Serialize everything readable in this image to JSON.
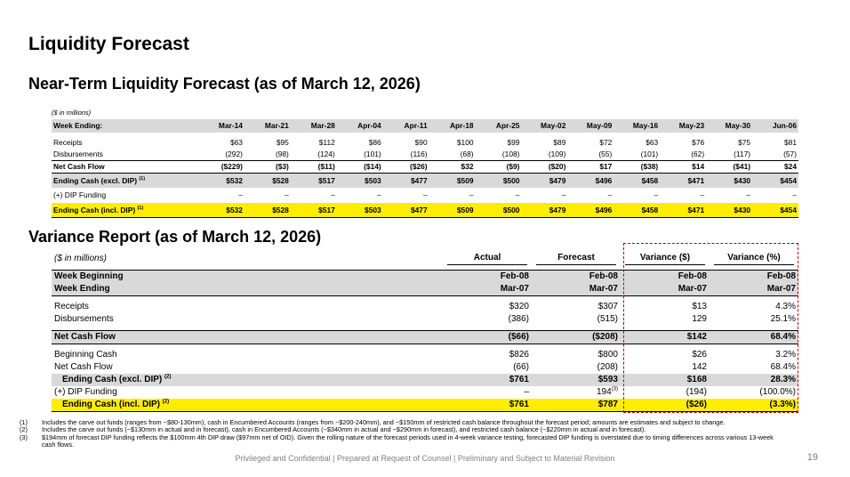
{
  "title": "Liquidity Forecast",
  "forecast": {
    "title": "Near-Term Liquidity Forecast (as of March 12, 2026)",
    "units": "($ in millions)",
    "week_label": "Week Ending:",
    "weeks": [
      "Mar-14",
      "Mar-21",
      "Mar-28",
      "Apr-04",
      "Apr-11",
      "Apr-18",
      "Apr-25",
      "May-02",
      "May-09",
      "May-16",
      "May-23",
      "May-30",
      "Jun-06"
    ],
    "rows": {
      "receipts": {
        "label": "Receipts",
        "values": [
          "$63",
          "$95",
          "$112",
          "$86",
          "$90",
          "$100",
          "$99",
          "$89",
          "$72",
          "$63",
          "$76",
          "$75",
          "$81"
        ]
      },
      "disbursements": {
        "label": "Disbursements",
        "values": [
          "(292)",
          "(98)",
          "(124)",
          "(101)",
          "(116)",
          "(68)",
          "(108)",
          "(109)",
          "(55)",
          "(101)",
          "(62)",
          "(117)",
          "(57)"
        ]
      },
      "net_cash_flow": {
        "label": "Net Cash Flow",
        "values": [
          "($229)",
          "($3)",
          "($11)",
          "($14)",
          "($26)",
          "$32",
          "($9)",
          "($20)",
          "$17",
          "($38)",
          "$14",
          "($41)",
          "$24"
        ]
      },
      "ending_cash_excl": {
        "label": "Ending Cash (excl. DIP)",
        "note": "(1)",
        "values": [
          "$532",
          "$528",
          "$517",
          "$503",
          "$477",
          "$509",
          "$500",
          "$479",
          "$496",
          "$458",
          "$471",
          "$430",
          "$454"
        ]
      },
      "dip_funding": {
        "label": "(+) DIP Funding",
        "values": [
          "–",
          "–",
          "–",
          "–",
          "–",
          "–",
          "–",
          "–",
          "–",
          "–",
          "–",
          "–",
          "–"
        ]
      },
      "ending_cash_incl": {
        "label": "Ending Cash (incl. DIP)",
        "note": "(1)",
        "values": [
          "$532",
          "$528",
          "$517",
          "$503",
          "$477",
          "$509",
          "$500",
          "$479",
          "$496",
          "$458",
          "$471",
          "$430",
          "$454"
        ]
      }
    }
  },
  "variance": {
    "title": "Variance Report (as of March 12, 2026)",
    "units": "($ in millions)",
    "columns": [
      "Actual",
      "Forecast",
      "Variance ($)",
      "Variance (%)"
    ],
    "week_beginning": {
      "label": "Week Beginning",
      "values": [
        "Feb-08",
        "Feb-08",
        "Feb-08",
        "Feb-08"
      ]
    },
    "week_ending": {
      "label": "Week Ending",
      "values": [
        "Mar-07",
        "Mar-07",
        "Mar-07",
        "Mar-07"
      ]
    },
    "receipts": {
      "label": "Receipts",
      "values": [
        "$320",
        "$307",
        "$13",
        "4.3%"
      ]
    },
    "disbursements": {
      "label": "Disbursements",
      "values": [
        "(386)",
        "(515)",
        "129",
        "25.1%"
      ]
    },
    "net_cash_flow": {
      "label": "Net Cash Flow",
      "values": [
        "($66)",
        "($208)",
        "$142",
        "68.4%"
      ]
    },
    "beginning_cash": {
      "label": "Beginning Cash",
      "values": [
        "$826",
        "$800",
        "$26",
        "3.2%"
      ]
    },
    "net_cash_flow_2": {
      "label": "Net Cash Flow",
      "values": [
        "(66)",
        "(208)",
        "142",
        "68.4%"
      ]
    },
    "ending_cash_excl": {
      "label": "Ending Cash (excl. DIP)",
      "note": "(2)",
      "values": [
        "$761",
        "$593",
        "$168",
        "28.3%"
      ]
    },
    "dip_funding": {
      "label": "(+) DIP Funding",
      "values": [
        "–",
        "194",
        "(194)",
        "(100.0%)"
      ],
      "forecast_note": "(3)"
    },
    "ending_cash_incl": {
      "label": "Ending Cash (incl. DIP)",
      "note": "(2)",
      "values": [
        "$761",
        "$787",
        "($26)",
        "(3.3%)"
      ]
    }
  },
  "footnotes": [
    {
      "num": "(1)",
      "text": "Includes the carve out funds (ranges from ~$80-130mm), cash in Encumbered Accounts (ranges from ~$200-240mm), and ~$150mm of restricted cash balance throughout the forecast period; amounts are estimates and subject to change."
    },
    {
      "num": "(2)",
      "text": "Includes the carve out funds (~$130mm in actual and in forecast), cash in Encumbered Accounts (~$340mm in actual and ~$290mm in forecast), and restricted cash balance (~$220mm in actual and in forecast)."
    },
    {
      "num": "(3)",
      "text": "$194mm of forecast DIP funding reflects the $100mm 4th DIP draw ($97mm net of OID). Given the rolling nature of the forecast periods used in 4-week variance testing, forecasted DIP funding is overstated due to timing differences across various 13-week cash flows."
    }
  ],
  "footer": "Privileged and Confidential | Prepared at Request of Counsel | Preliminary and Subject to Material Revision",
  "page_number": "19"
}
